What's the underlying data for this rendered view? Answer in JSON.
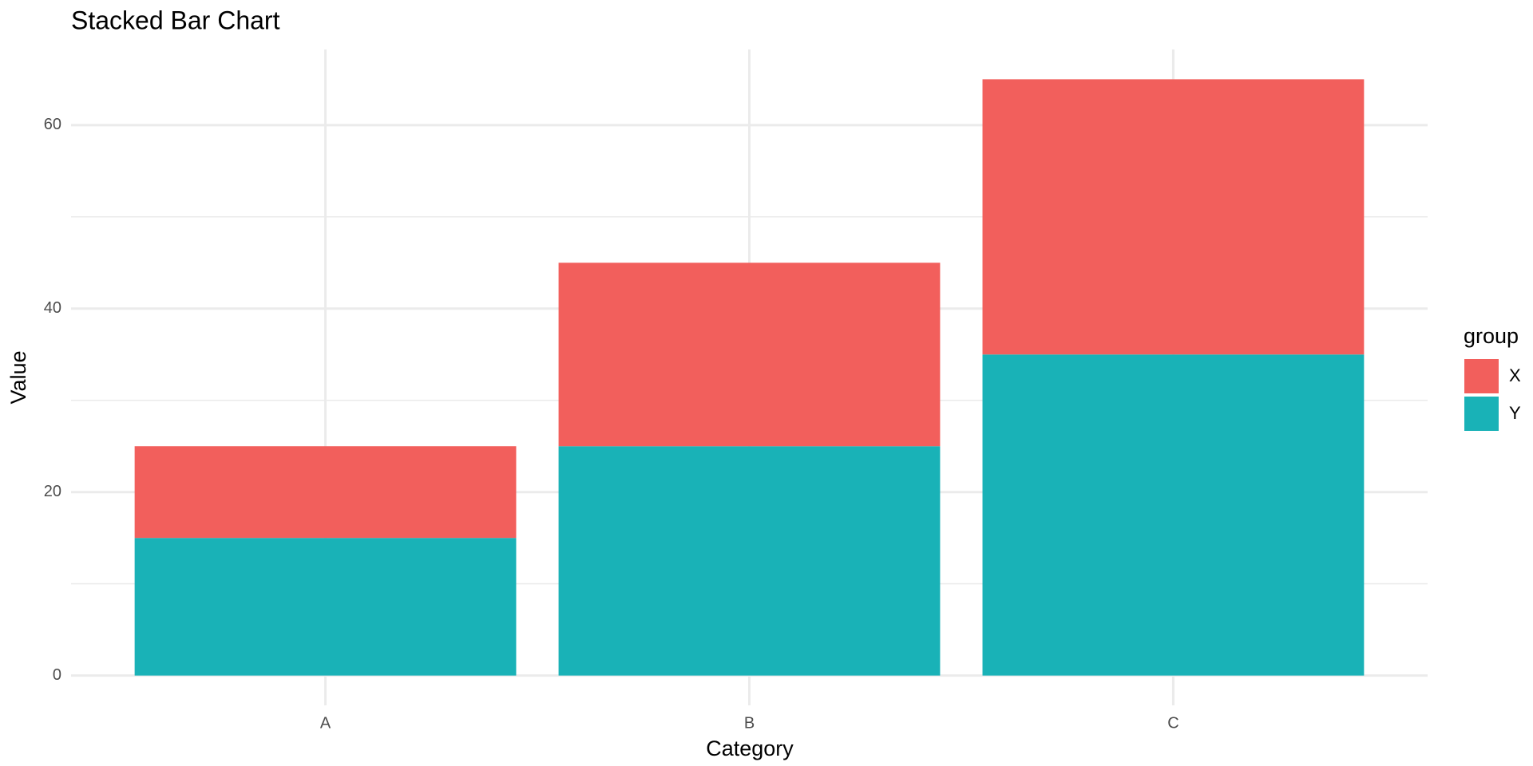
{
  "chart_data": {
    "type": "stacked_bar",
    "title": "Stacked Bar Chart",
    "x_label": "Category",
    "y_label": "Value",
    "categories": [
      "A",
      "B",
      "C"
    ],
    "series": [
      {
        "name": "X",
        "color": "#f25f5c",
        "values": [
          10,
          20,
          30
        ]
      },
      {
        "name": "Y",
        "color": "#19b2b7",
        "values": [
          15,
          25,
          35
        ]
      }
    ],
    "legend_title": "group",
    "legend": "right",
    "ylim": [
      -3.25,
      68.25
    ],
    "yticks": [
      0,
      20,
      40,
      60
    ],
    "minor_yticks": [
      10,
      30,
      50
    ],
    "grid": true
  }
}
